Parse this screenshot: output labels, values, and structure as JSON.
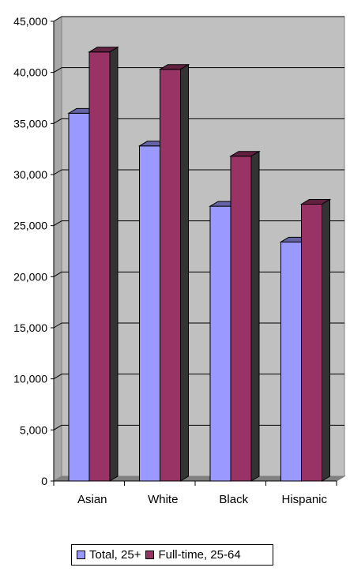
{
  "chart_data": {
    "type": "bar",
    "categories": [
      "Asian",
      "White",
      "Black",
      "Hispanic"
    ],
    "series": [
      {
        "name": "Total, 25+",
        "values": [
          36000,
          32800,
          26900,
          23400
        ]
      },
      {
        "name": "Full-time, 25-64",
        "values": [
          42000,
          40300,
          31800,
          27100
        ]
      }
    ],
    "ylim": [
      0,
      45000
    ],
    "y_ticks": [
      "0",
      "5,000",
      "10,000",
      "15,000",
      "20,000",
      "25,000",
      "30,000",
      "35,000",
      "40,000",
      "45,000"
    ],
    "grid": true,
    "legend_position": "bottom",
    "colors": {
      "series_0": "#9999ff",
      "series_1": "#993366",
      "plot_background": "#c0c0c0"
    }
  }
}
